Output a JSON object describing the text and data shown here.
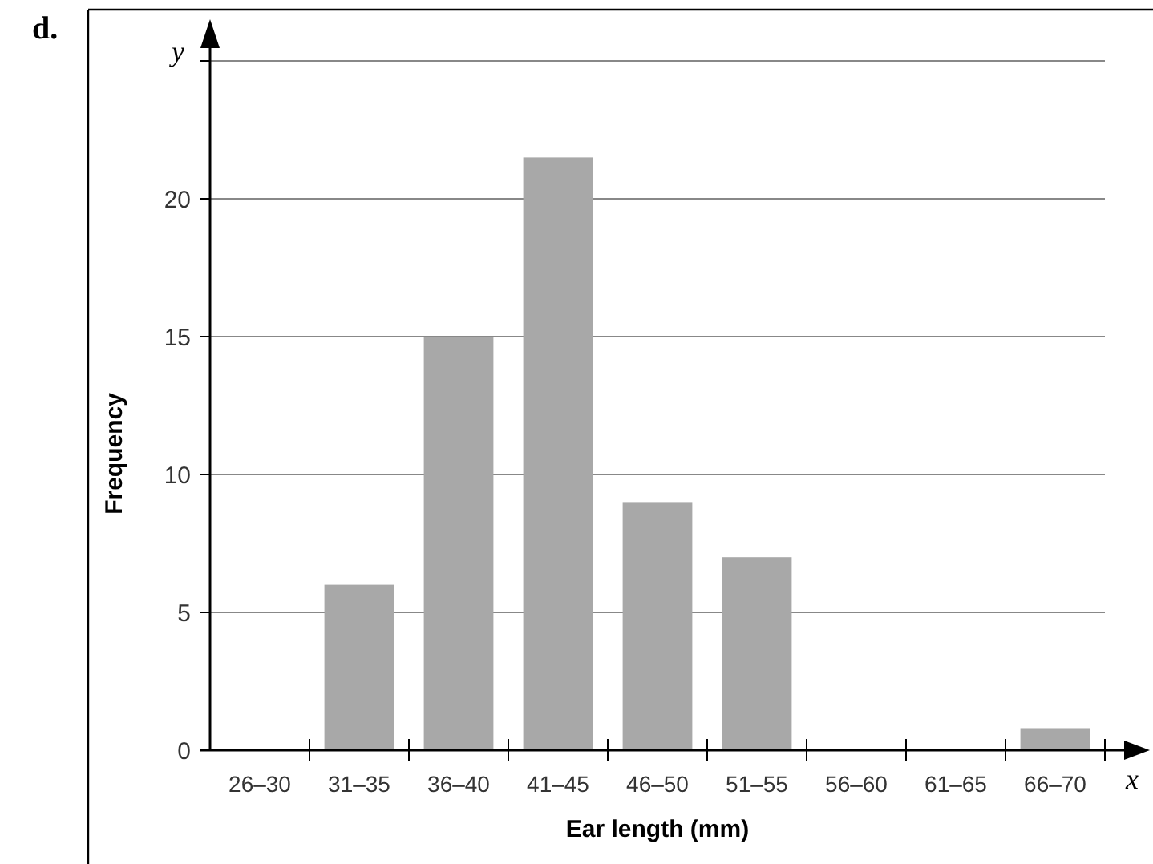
{
  "chart_data": {
    "type": "bar",
    "xlabel": "Ear length (mm)",
    "ylabel": "Frequency",
    "categories": [
      "26–30",
      "31–35",
      "36–40",
      "41–45",
      "46–50",
      "51–55",
      "56–60",
      "61–65",
      "66–70"
    ],
    "values": [
      0,
      6,
      15,
      21.5,
      9,
      7,
      0,
      0,
      0.8
    ],
    "color": "#a8a8a8",
    "ylim": [
      0,
      25
    ],
    "yticks": [
      0,
      5,
      10,
      15,
      20,
      {
        "value": 25,
        "label": null
      }
    ],
    "grid": "y",
    "annotations": [
      "d.",
      "x",
      "y"
    ]
  }
}
